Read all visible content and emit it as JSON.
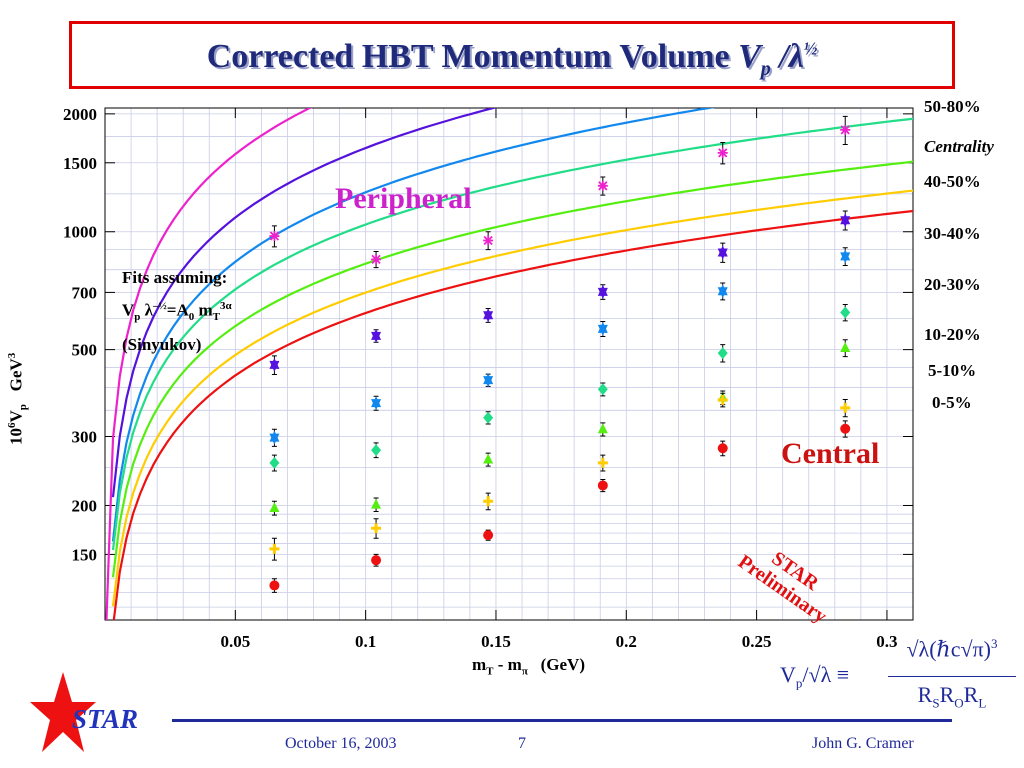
{
  "slide": {
    "title": "Corrected HBT Momentum Volume",
    "title_symbol": "V",
    "title_symbol_sub": "p",
    "title_slash": "/",
    "title_lambda": "λ",
    "title_half": "½"
  },
  "chart_data": {
    "type": "scatter",
    "title": "",
    "xlabel_parts": {
      "main": "m",
      "sub1": "T",
      "mid": " - m",
      "sub2": "π",
      "unit": "   (GeV)"
    },
    "ylabel_parts": {
      "pre": "10",
      "sup": "6",
      "mid": "V",
      "sub": "p",
      "unit": "   GeV",
      "unit_sup": "3"
    },
    "xlim": [
      0.0,
      0.31
    ],
    "ylim": [
      102,
      2070
    ],
    "y_scale": "log",
    "grid": true,
    "x_ticks": [
      {
        "v": 0.05,
        "label": "0.05"
      },
      {
        "v": 0.1,
        "label": "0.1"
      },
      {
        "v": 0.15,
        "label": "0.15"
      },
      {
        "v": 0.2,
        "label": "0.2"
      },
      {
        "v": 0.25,
        "label": "0.25"
      },
      {
        "v": 0.3,
        "label": "0.3"
      }
    ],
    "y_ticks": [
      {
        "v": 150,
        "label": "150"
      },
      {
        "v": 200,
        "label": "200"
      },
      {
        "v": 300,
        "label": "300"
      },
      {
        "v": 500,
        "label": "500"
      },
      {
        "v": 700,
        "label": "700"
      },
      {
        "v": 1000,
        "label": "1000"
      },
      {
        "v": 1500,
        "label": "1500"
      },
      {
        "v": 2000,
        "label": "2000"
      }
    ],
    "legend_header": "Centrality",
    "legend_placement": "right",
    "series": [
      {
        "name": "50-80%",
        "color": "#ee22cc",
        "marker": "asterisk",
        "x": [
          0.065,
          0.104,
          0.147,
          0.191,
          0.237,
          0.284
        ],
        "y": [
          975,
          850,
          950,
          1310,
          1590,
          1820
        ],
        "err": [
          60,
          40,
          50,
          70,
          100,
          150
        ],
        "fit_a": 7.78,
        "fit_b": 0.6
      },
      {
        "name": "40-50%",
        "color": "#5511dd",
        "marker": "star",
        "x": [
          0.065,
          0.104,
          0.147,
          0.191,
          0.237,
          0.284
        ],
        "y": [
          457,
          542,
          612,
          702,
          885,
          1070
        ],
        "err": [
          25,
          20,
          25,
          30,
          50,
          60
        ],
        "fit_a": 7.4,
        "fit_b": 0.59
      },
      {
        "name": "30-40%",
        "color": "#1188ee",
        "marker": "star",
        "x": [
          0.065,
          0.104,
          0.147,
          0.191,
          0.237,
          0.284
        ],
        "y": [
          298,
          365,
          418,
          565,
          705,
          865
        ],
        "err": [
          15,
          15,
          15,
          25,
          35,
          45
        ],
        "fit_a": 7.14,
        "fit_b": 0.59
      },
      {
        "name": "20-30%",
        "color": "#22dd88",
        "marker": "diamond",
        "x": [
          0.065,
          0.104,
          0.147,
          0.191,
          0.237,
          0.284
        ],
        "y": [
          257,
          277,
          335,
          396,
          490,
          622
        ],
        "err": [
          12,
          12,
          12,
          15,
          25,
          30
        ],
        "fit_a": 6.95,
        "fit_b": 0.55
      },
      {
        "name": "10-20%",
        "color": "#55ee11",
        "marker": "triangle",
        "x": [
          0.065,
          0.104,
          0.147,
          0.191,
          0.237,
          0.284
        ],
        "y": [
          197,
          201,
          262,
          313,
          377,
          505
        ],
        "err": [
          8,
          8,
          10,
          12,
          15,
          25
        ],
        "fit_a": 6.72,
        "fit_b": 0.53
      },
      {
        "name": "5-10%",
        "color": "#ffcc00",
        "marker": "cross",
        "x": [
          0.065,
          0.104,
          0.147,
          0.191,
          0.237,
          0.284
        ],
        "y": [
          155,
          175,
          205,
          257,
          372,
          355
        ],
        "err": [
          10,
          10,
          10,
          12,
          15,
          18
        ],
        "fit_a": 6.55,
        "fit_b": 0.53
      },
      {
        "name": "0-5%",
        "color": "#ee1111",
        "marker": "circle",
        "x": [
          0.065,
          0.104,
          0.147,
          0.191,
          0.237,
          0.284
        ],
        "y": [
          125,
          145,
          168,
          225,
          280,
          314
        ],
        "err": [
          5,
          5,
          5,
          8,
          12,
          15
        ],
        "fit_a": 6.43,
        "fit_b": 0.53
      }
    ],
    "annotations": {
      "fits_line1": "Fits assuming:",
      "fits_v": "V",
      "fits_v_sub": "p",
      "fits_lambda": " λ",
      "fits_lambda_sup": "–½",
      "fits_eq": "=A",
      "fits_a_sub": "0",
      "fits_m": " m",
      "fits_m_sub": "T",
      "fits_m_sup": "3α",
      "fits_line3": "(Sinyukov)",
      "peripheral": "Peripheral",
      "central": "Central",
      "preliminary_line1": "STAR",
      "preliminary_line2": "Preliminary"
    },
    "formula": {
      "lhs_v": "V",
      "lhs_sub": "p",
      "lhs_rest": "/√λ ≡",
      "numerator": "√λ(ℏc√π)",
      "numerator_sup": "3",
      "den_r1": "R",
      "den_s": "S",
      "den_r2": "R",
      "den_o": "O",
      "den_r3": "R",
      "den_l": "L"
    }
  },
  "footer": {
    "logo_text": "STAR",
    "date": "October 16, 2003",
    "page": "7",
    "author": "John G. Cramer"
  }
}
